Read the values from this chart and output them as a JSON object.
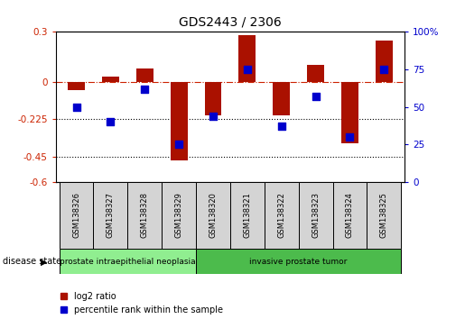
{
  "title": "GDS2443 / 2306",
  "samples": [
    "GSM138326",
    "GSM138327",
    "GSM138328",
    "GSM138329",
    "GSM138320",
    "GSM138321",
    "GSM138322",
    "GSM138323",
    "GSM138324",
    "GSM138325"
  ],
  "log2_ratio": [
    -0.05,
    0.03,
    0.08,
    -0.47,
    -0.2,
    0.28,
    -0.2,
    0.1,
    -0.37,
    0.25
  ],
  "percentile_rank": [
    50,
    40,
    62,
    25,
    44,
    75,
    37,
    57,
    30,
    75
  ],
  "groups": [
    {
      "label": "prostate intraepithelial neoplasia",
      "start": 0,
      "end": 3,
      "color": "#90ee90"
    },
    {
      "label": "invasive prostate tumor",
      "start": 4,
      "end": 9,
      "color": "#4cbb4c"
    }
  ],
  "ylim_left": [
    -0.6,
    0.3
  ],
  "ylim_right": [
    0,
    100
  ],
  "yticks_left": [
    0.3,
    0.0,
    -0.225,
    -0.45,
    -0.6
  ],
  "yticks_right": [
    100,
    75,
    50,
    25,
    0
  ],
  "ytick_labels_left": [
    "0.3",
    "0",
    "-0.225",
    "-0.45",
    "-0.6"
  ],
  "ytick_labels_right": [
    "100%",
    "75",
    "50",
    "25",
    "0"
  ],
  "hlines": [
    -0.225,
    -0.45
  ],
  "zero_line": 0.0,
  "bar_color": "#aa1100",
  "dot_color": "#0000cc",
  "bar_width": 0.5,
  "dot_size": 35,
  "legend_log2": "log2 ratio",
  "legend_pct": "percentile rank within the sample",
  "disease_state_label": "disease state"
}
